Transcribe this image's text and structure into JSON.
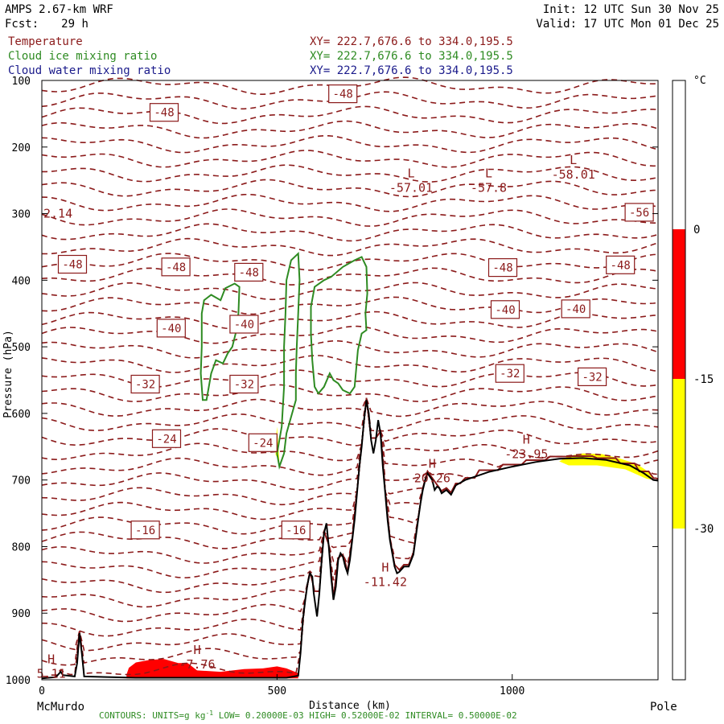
{
  "header": {
    "model": "AMPS 2.67-km WRF",
    "fcst_label": "Fcst:",
    "fcst_value": "29 h",
    "init": "Init: 12 UTC Sun 30 Nov 25",
    "valid": "Valid: 17 UTC Mon 01 Dec 25"
  },
  "fields": [
    {
      "name": "Temperature",
      "xy": "XY= 222.7,676.6 to 334.0,195.5",
      "color": "#8b1a1a"
    },
    {
      "name": "Cloud ice mixing ratio",
      "xy": "XY= 222.7,676.6 to 334.0,195.5",
      "color": "#2e8b22"
    },
    {
      "name": "Cloud water mixing ratio",
      "xy": "XY= 222.7,676.6 to 334.0,195.5",
      "color": "#1a1a8b"
    }
  ],
  "footer": {
    "contours": "CONTOURS: UNITS=g kg",
    "contours_sup": "-1",
    "contours_rest": " LOW= 0.20000E-03 HIGH= 0.52000E-02 INTERVAL= 0.50000E-02"
  },
  "colorbar": {
    "unit": "°C",
    "ticks": [
      "0",
      "-15",
      "-30"
    ],
    "bands": [
      {
        "range": "above 0",
        "color": "#ffffff"
      },
      {
        "range": "-15 to 0",
        "color": "#ff0000"
      },
      {
        "range": "-30 to -15",
        "color": "#ffff00"
      },
      {
        "range": "below -30",
        "color": "#ffffff"
      }
    ]
  },
  "chart_data": {
    "type": "cross-section",
    "xlabel": "Distance (km)",
    "ylabel": "Pressure (hPa)",
    "xlim": [
      0,
      1310
    ],
    "ylim": [
      1000,
      100
    ],
    "x_ticks": [
      0,
      500,
      1000
    ],
    "y_ticks": [
      100,
      200,
      300,
      400,
      500,
      600,
      700,
      800,
      900,
      1000
    ],
    "x_endpoints": {
      "left": "McMurdo",
      "right": "Pole"
    },
    "temperature_contours_C": [
      -16,
      -24,
      -32,
      -40,
      -48,
      -56
    ],
    "temperature_labels": [
      {
        "text": "-48",
        "x": 260,
        "p": 148
      },
      {
        "text": "-48",
        "x": 640,
        "p": 120
      },
      {
        "text": "-56",
        "x": 1270,
        "p": 298
      },
      {
        "text": "-48",
        "x": 65,
        "p": 376
      },
      {
        "text": "-48",
        "x": 285,
        "p": 380
      },
      {
        "text": "-48",
        "x": 440,
        "p": 388
      },
      {
        "text": "-48",
        "x": 980,
        "p": 381
      },
      {
        "text": "-48",
        "x": 1230,
        "p": 377
      },
      {
        "text": "-40",
        "x": 275,
        "p": 472
      },
      {
        "text": "-40",
        "x": 430,
        "p": 466
      },
      {
        "text": "-40",
        "x": 985,
        "p": 444
      },
      {
        "text": "-40",
        "x": 1135,
        "p": 443
      },
      {
        "text": "-32",
        "x": 220,
        "p": 556
      },
      {
        "text": "-32",
        "x": 430,
        "p": 556
      },
      {
        "text": "-32",
        "x": 995,
        "p": 540
      },
      {
        "text": "-32",
        "x": 1170,
        "p": 545
      },
      {
        "text": "-24",
        "x": 265,
        "p": 638
      },
      {
        "text": "-24",
        "x": 470,
        "p": 644
      },
      {
        "text": "-16",
        "x": 220,
        "p": 775
      },
      {
        "text": "-16",
        "x": 540,
        "p": 775
      }
    ],
    "extrema": [
      {
        "type": "L",
        "value": "-57.01",
        "x": 785,
        "p": 260
      },
      {
        "type": "L",
        "value": "-57.8",
        "x": 950,
        "p": 260
      },
      {
        "type": "L",
        "value": "-58.01",
        "x": 1130,
        "p": 240
      },
      {
        "type": "H",
        "value": "-7.76",
        "x": 330,
        "p": 976
      },
      {
        "type": "H",
        "value": "-11.42",
        "x": 730,
        "p": 852
      },
      {
        "type": "H",
        "value": "20.26",
        "x": 830,
        "p": 696
      },
      {
        "type": "H",
        "value": "-23.95",
        "x": 1030,
        "p": 660
      },
      {
        "type": "H",
        "value": "5.11",
        "x": 20,
        "p": 990
      }
    ],
    "edge_labels": [
      {
        "text": "2.14",
        "x": 0,
        "p": 300
      }
    ],
    "terrain_profile": [
      [
        0,
        998
      ],
      [
        30,
        996
      ],
      [
        40,
        988
      ],
      [
        45,
        993
      ],
      [
        70,
        995
      ],
      [
        75,
        975
      ],
      [
        80,
        930
      ],
      [
        85,
        960
      ],
      [
        90,
        995
      ],
      [
        200,
        997
      ],
      [
        400,
        997
      ],
      [
        520,
        997
      ],
      [
        545,
        994
      ],
      [
        550,
        960
      ],
      [
        555,
        910
      ],
      [
        560,
        880
      ],
      [
        565,
        855
      ],
      [
        570,
        840
      ],
      [
        575,
        845
      ],
      [
        578,
        870
      ],
      [
        582,
        890
      ],
      [
        585,
        905
      ],
      [
        590,
        870
      ],
      [
        595,
        820
      ],
      [
        600,
        780
      ],
      [
        605,
        765
      ],
      [
        610,
        800
      ],
      [
        615,
        845
      ],
      [
        620,
        880
      ],
      [
        625,
        860
      ],
      [
        630,
        820
      ],
      [
        635,
        810
      ],
      [
        640,
        815
      ],
      [
        645,
        830
      ],
      [
        650,
        840
      ],
      [
        655,
        820
      ],
      [
        660,
        790
      ],
      [
        665,
        760
      ],
      [
        670,
        720
      ],
      [
        675,
        680
      ],
      [
        680,
        650
      ],
      [
        685,
        610
      ],
      [
        690,
        580
      ],
      [
        695,
        600
      ],
      [
        700,
        640
      ],
      [
        705,
        660
      ],
      [
        710,
        640
      ],
      [
        715,
        610
      ],
      [
        720,
        630
      ],
      [
        725,
        680
      ],
      [
        730,
        720
      ],
      [
        735,
        760
      ],
      [
        740,
        790
      ],
      [
        745,
        810
      ],
      [
        750,
        830
      ],
      [
        755,
        840
      ],
      [
        760,
        838
      ],
      [
        770,
        830
      ],
      [
        780,
        830
      ],
      [
        790,
        812
      ],
      [
        800,
        760
      ],
      [
        805,
        735
      ],
      [
        810,
        715
      ],
      [
        815,
        700
      ],
      [
        820,
        690
      ],
      [
        825,
        695
      ],
      [
        830,
        700
      ],
      [
        835,
        715
      ],
      [
        840,
        710
      ],
      [
        845,
        712
      ],
      [
        850,
        720
      ],
      [
        860,
        715
      ],
      [
        870,
        722
      ],
      [
        880,
        708
      ],
      [
        900,
        700
      ],
      [
        950,
        688
      ],
      [
        1000,
        680
      ],
      [
        1050,
        673
      ],
      [
        1100,
        668
      ],
      [
        1150,
        667
      ],
      [
        1200,
        670
      ],
      [
        1250,
        678
      ],
      [
        1280,
        690
      ],
      [
        1300,
        700
      ],
      [
        1310,
        701
      ]
    ],
    "cloud_ice_contour_g_per_kg": [
      0.0002
    ],
    "cloud_ice_regions": [
      [
        [
          340,
          450
        ],
        [
          345,
          430
        ],
        [
          360,
          422
        ],
        [
          380,
          430
        ],
        [
          390,
          412
        ],
        [
          410,
          405
        ],
        [
          420,
          410
        ],
        [
          418,
          450
        ],
        [
          412,
          480
        ],
        [
          405,
          500
        ],
        [
          395,
          510
        ],
        [
          385,
          525
        ],
        [
          370,
          520
        ],
        [
          360,
          540
        ],
        [
          355,
          560
        ],
        [
          350,
          580
        ],
        [
          342,
          580
        ],
        [
          338,
          540
        ],
        [
          340,
          500
        ]
      ],
      [
        [
          520,
          400
        ],
        [
          530,
          370
        ],
        [
          545,
          360
        ],
        [
          548,
          400
        ],
        [
          545,
          450
        ],
        [
          542,
          500
        ],
        [
          540,
          540
        ],
        [
          540,
          580
        ],
        [
          520,
          630
        ],
        [
          515,
          660
        ],
        [
          505,
          680
        ],
        [
          500,
          660
        ],
        [
          510,
          620
        ],
        [
          515,
          560
        ],
        [
          515,
          500
        ],
        [
          518,
          450
        ]
      ],
      [
        [
          572,
          440
        ],
        [
          580,
          410
        ],
        [
          600,
          400
        ],
        [
          615,
          395
        ],
        [
          640,
          380
        ],
        [
          665,
          370
        ],
        [
          680,
          365
        ],
        [
          690,
          380
        ],
        [
          692,
          420
        ],
        [
          688,
          450
        ],
        [
          690,
          475
        ],
        [
          680,
          480
        ],
        [
          672,
          505
        ],
        [
          665,
          560
        ],
        [
          655,
          570
        ],
        [
          640,
          565
        ],
        [
          630,
          555
        ],
        [
          620,
          550
        ],
        [
          612,
          540
        ],
        [
          600,
          560
        ],
        [
          588,
          570
        ],
        [
          580,
          560
        ],
        [
          575,
          520
        ],
        [
          572,
          480
        ]
      ]
    ],
    "temperature_band_regions": [
      {
        "band": "-15 to 0",
        "color": "#ff0000",
        "points": [
          [
            180,
            992
          ],
          [
            185,
            982
          ],
          [
            200,
            974
          ],
          [
            230,
            970
          ],
          [
            260,
            969
          ],
          [
            290,
            975
          ],
          [
            310,
            975
          ],
          [
            330,
            986
          ],
          [
            380,
            988
          ],
          [
            430,
            984
          ],
          [
            470,
            983
          ],
          [
            500,
            980
          ],
          [
            520,
            983
          ],
          [
            545,
            990
          ],
          [
            545,
            998
          ],
          [
            180,
            998
          ]
        ]
      },
      {
        "band": "-30 to -15",
        "color": "#ffff00",
        "points": [
          [
            1100,
            672
          ],
          [
            1120,
            664
          ],
          [
            1150,
            660
          ],
          [
            1190,
            661
          ],
          [
            1230,
            668
          ],
          [
            1265,
            676
          ],
          [
            1290,
            688
          ],
          [
            1300,
            700
          ],
          [
            1285,
            698
          ],
          [
            1240,
            684
          ],
          [
            1180,
            678
          ],
          [
            1120,
            678
          ]
        ]
      },
      {
        "band": "-30 to -15",
        "color": "#ffff00",
        "points": [
          [
            500,
            620
          ],
          [
            502,
            640
          ],
          [
            505,
            672
          ],
          [
            497,
            662
          ],
          [
            498,
            635
          ]
        ]
      }
    ]
  }
}
